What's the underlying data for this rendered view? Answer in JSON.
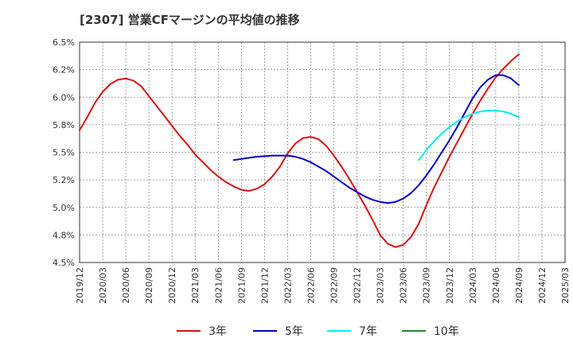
{
  "chart_data": {
    "type": "line",
    "title": "[2307]  営業CFマージンの平均値の推移",
    "xlabel": "",
    "ylabel": "",
    "y_ticks": [
      "4.5%",
      "4.8%",
      "5.0%",
      "5.2%",
      "5.5%",
      "5.8%",
      "6.0%",
      "6.2%",
      "6.5%"
    ],
    "ylim": [
      4.5,
      6.5
    ],
    "x_ticks": [
      "2019/12",
      "2020/03",
      "2020/06",
      "2020/09",
      "2020/12",
      "2021/03",
      "2021/06",
      "2021/09",
      "2021/12",
      "2022/03",
      "2022/06",
      "2022/09",
      "2022/12",
      "2023/03",
      "2023/06",
      "2023/09",
      "2023/12",
      "2024/03",
      "2024/06",
      "2024/09",
      "2024/12",
      "2025/03"
    ],
    "grid": true,
    "legend_position": "bottom",
    "series": [
      {
        "name": "3年",
        "color": "#dd1111",
        "points": [
          [
            "2019/12",
            5.7
          ],
          [
            "2020/01",
            5.82
          ],
          [
            "2020/02",
            5.95
          ],
          [
            "2020/03",
            6.05
          ],
          [
            "2020/04",
            6.12
          ],
          [
            "2020/05",
            6.16
          ],
          [
            "2020/06",
            6.17
          ],
          [
            "2020/07",
            6.15
          ],
          [
            "2020/08",
            6.1
          ],
          [
            "2020/09",
            6.01
          ],
          [
            "2020/10",
            5.92
          ],
          [
            "2020/11",
            5.83
          ],
          [
            "2020/12",
            5.74
          ],
          [
            "2021/01",
            5.65
          ],
          [
            "2021/02",
            5.57
          ],
          [
            "2021/03",
            5.48
          ],
          [
            "2021/04",
            5.41
          ],
          [
            "2021/05",
            5.34
          ],
          [
            "2021/06",
            5.28
          ],
          [
            "2021/07",
            5.23
          ],
          [
            "2021/08",
            5.19
          ],
          [
            "2021/09",
            5.16
          ],
          [
            "2021/10",
            5.15
          ],
          [
            "2021/11",
            5.17
          ],
          [
            "2021/12",
            5.21
          ],
          [
            "2022/01",
            5.28
          ],
          [
            "2022/02",
            5.37
          ],
          [
            "2022/03",
            5.49
          ],
          [
            "2022/04",
            5.58
          ],
          [
            "2022/05",
            5.63
          ],
          [
            "2022/06",
            5.64
          ],
          [
            "2022/07",
            5.62
          ],
          [
            "2022/08",
            5.56
          ],
          [
            "2022/09",
            5.47
          ],
          [
            "2022/10",
            5.37
          ],
          [
            "2022/11",
            5.26
          ],
          [
            "2022/12",
            5.14
          ],
          [
            "2023/01",
            5.02
          ],
          [
            "2023/02",
            4.89
          ],
          [
            "2023/03",
            4.75
          ],
          [
            "2023/04",
            4.67
          ],
          [
            "2023/05",
            4.64
          ],
          [
            "2023/06",
            4.66
          ],
          [
            "2023/07",
            4.73
          ],
          [
            "2023/08",
            4.85
          ],
          [
            "2023/09",
            5.02
          ],
          [
            "2023/10",
            5.18
          ],
          [
            "2023/11",
            5.32
          ],
          [
            "2023/12",
            5.46
          ],
          [
            "2024/01",
            5.59
          ],
          [
            "2024/02",
            5.72
          ],
          [
            "2024/03",
            5.85
          ],
          [
            "2024/04",
            5.97
          ],
          [
            "2024/05",
            6.08
          ],
          [
            "2024/06",
            6.18
          ],
          [
            "2024/07",
            6.26
          ],
          [
            "2024/08",
            6.33
          ],
          [
            "2024/09",
            6.39
          ]
        ]
      },
      {
        "name": "5年",
        "color": "#0000cc",
        "points": [
          [
            "2021/08",
            5.43
          ],
          [
            "2021/09",
            5.44
          ],
          [
            "2021/10",
            5.45
          ],
          [
            "2021/11",
            5.46
          ],
          [
            "2021/12",
            5.465
          ],
          [
            "2022/01",
            5.47
          ],
          [
            "2022/02",
            5.47
          ],
          [
            "2022/03",
            5.47
          ],
          [
            "2022/04",
            5.46
          ],
          [
            "2022/05",
            5.44
          ],
          [
            "2022/06",
            5.41
          ],
          [
            "2022/07",
            5.37
          ],
          [
            "2022/08",
            5.33
          ],
          [
            "2022/09",
            5.28
          ],
          [
            "2022/10",
            5.23
          ],
          [
            "2022/11",
            5.18
          ],
          [
            "2022/12",
            5.14
          ],
          [
            "2023/01",
            5.1
          ],
          [
            "2023/02",
            5.07
          ],
          [
            "2023/03",
            5.05
          ],
          [
            "2023/04",
            5.04
          ],
          [
            "2023/05",
            5.05
          ],
          [
            "2023/06",
            5.08
          ],
          [
            "2023/07",
            5.13
          ],
          [
            "2023/08",
            5.2
          ],
          [
            "2023/09",
            5.29
          ],
          [
            "2023/10",
            5.39
          ],
          [
            "2023/11",
            5.5
          ],
          [
            "2023/12",
            5.61
          ],
          [
            "2024/01",
            5.73
          ],
          [
            "2024/02",
            5.86
          ],
          [
            "2024/03",
            5.99
          ],
          [
            "2024/04",
            6.09
          ],
          [
            "2024/05",
            6.16
          ],
          [
            "2024/06",
            6.2
          ],
          [
            "2024/07",
            6.2
          ],
          [
            "2024/08",
            6.17
          ],
          [
            "2024/09",
            6.11
          ]
        ]
      },
      {
        "name": "7年",
        "color": "#00eeee",
        "points": [
          [
            "2023/08",
            5.43
          ],
          [
            "2023/09",
            5.52
          ],
          [
            "2023/10",
            5.6
          ],
          [
            "2023/11",
            5.67
          ],
          [
            "2023/12",
            5.73
          ],
          [
            "2024/01",
            5.78
          ],
          [
            "2024/02",
            5.82
          ],
          [
            "2024/03",
            5.85
          ],
          [
            "2024/04",
            5.87
          ],
          [
            "2024/05",
            5.88
          ],
          [
            "2024/06",
            5.88
          ],
          [
            "2024/07",
            5.87
          ],
          [
            "2024/08",
            5.85
          ],
          [
            "2024/09",
            5.82
          ]
        ]
      },
      {
        "name": "10年",
        "color": "#228822",
        "points": []
      }
    ]
  }
}
